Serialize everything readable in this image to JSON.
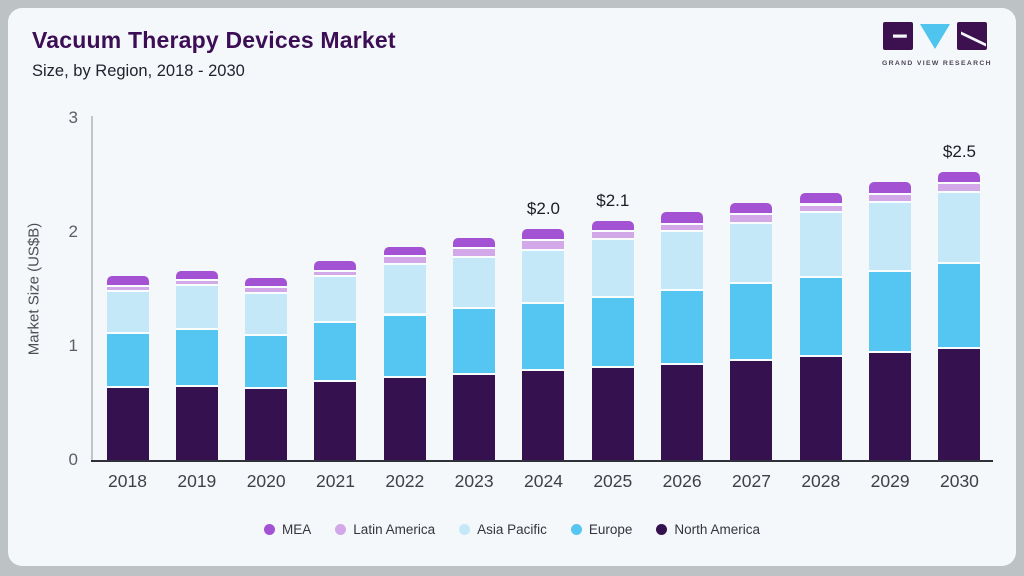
{
  "page": {
    "outer_background": "#bdc2c5",
    "card_background": "#f5f8fa"
  },
  "header": {
    "title": "Vacuum Therapy Devices Market",
    "subtitle": "Size, by Region, 2018 - 2030",
    "title_color": "#3c0e56"
  },
  "logo": {
    "name": "Grand View Research",
    "text": "GRAND VIEW RESEARCH",
    "block_color": "#3d1150",
    "triangle_color": "#4ec4ee"
  },
  "chart_data": {
    "type": "bar",
    "stacked": true,
    "title": "Vacuum Therapy Devices Market Size, by Region, 2018 - 2030",
    "xlabel": "",
    "ylabel": "Market Size (US$B)",
    "ylim": [
      0,
      3
    ],
    "yticks": [
      0,
      1,
      2,
      3
    ],
    "grid": false,
    "legend_position": "bottom",
    "categories": [
      "2018",
      "2019",
      "2020",
      "2021",
      "2022",
      "2023",
      "2024",
      "2025",
      "2026",
      "2027",
      "2028",
      "2029",
      "2030"
    ],
    "series": [
      {
        "name": "North America",
        "color": "#361150",
        "values": [
          0.65,
          0.66,
          0.64,
          0.7,
          0.74,
          0.765,
          0.795,
          0.825,
          0.855,
          0.885,
          0.925,
          0.955,
          0.99
        ]
      },
      {
        "name": "Europe",
        "color": "#54c6f1",
        "values": [
          0.47,
          0.5,
          0.465,
          0.52,
          0.545,
          0.58,
          0.595,
          0.61,
          0.645,
          0.675,
          0.685,
          0.715,
          0.745
        ]
      },
      {
        "name": "Asia Pacific",
        "color": "#c5e8f9",
        "values": [
          0.37,
          0.38,
          0.365,
          0.4,
          0.445,
          0.445,
          0.465,
          0.515,
          0.515,
          0.53,
          0.575,
          0.6,
          0.625
        ]
      },
      {
        "name": "Latin America",
        "color": "#d2a8e8",
        "values": [
          0.045,
          0.045,
          0.06,
          0.05,
          0.065,
          0.075,
          0.08,
          0.07,
          0.065,
          0.075,
          0.065,
          0.07,
          0.08
        ]
      },
      {
        "name": "MEA",
        "color": "#a352d4",
        "values": [
          0.075,
          0.075,
          0.07,
          0.08,
          0.075,
          0.08,
          0.09,
          0.075,
          0.095,
          0.09,
          0.09,
          0.095,
          0.09
        ]
      }
    ],
    "annotations": [
      {
        "category": "2024",
        "label": "$2.0"
      },
      {
        "category": "2025",
        "label": "$2.1"
      },
      {
        "category": "2030",
        "label": "$2.5"
      }
    ]
  }
}
